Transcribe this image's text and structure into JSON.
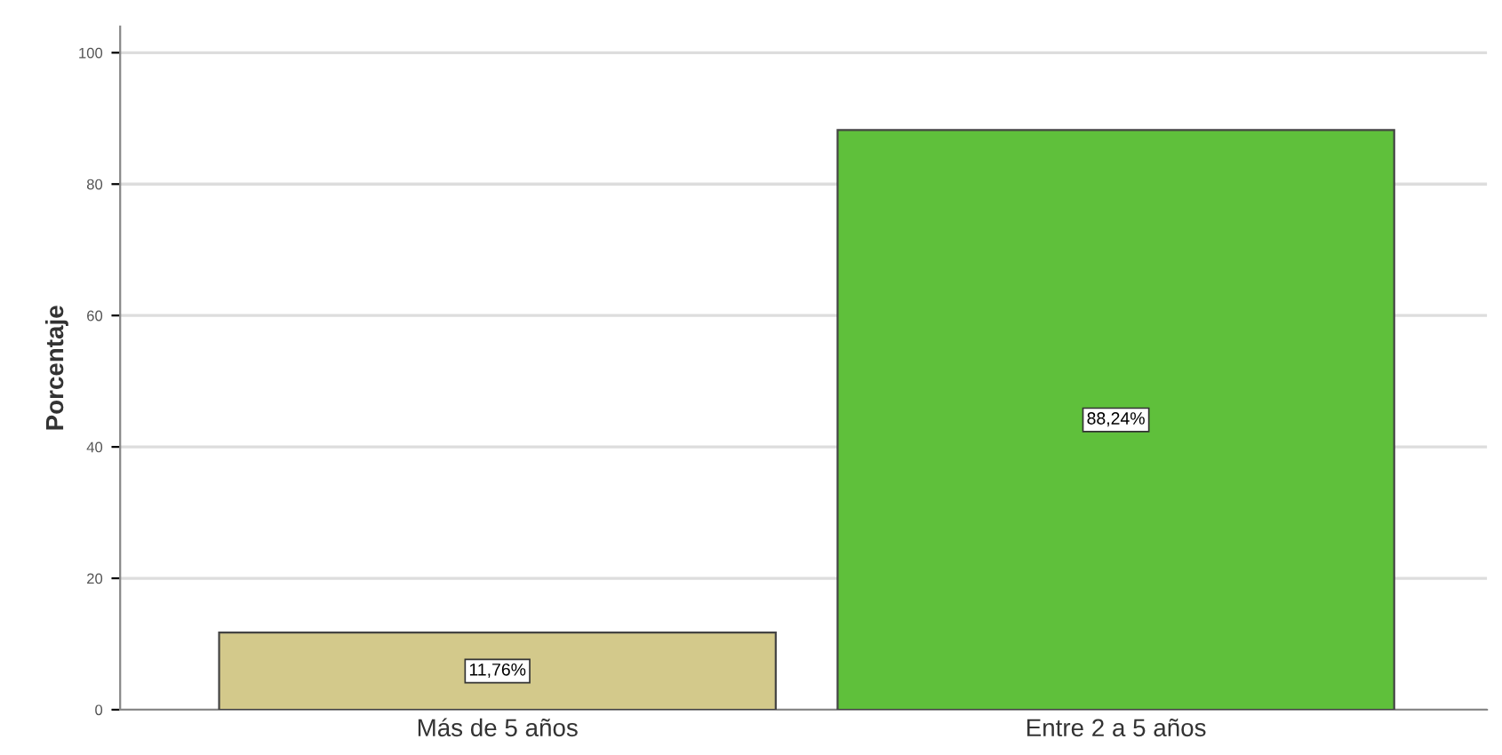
{
  "chart_data": {
    "type": "bar",
    "ylabel": "Porcentaje",
    "categories": [
      "Más de 5 años",
      "Entre 2 a 5 años"
    ],
    "values": [
      11.76,
      88.24
    ],
    "colors": [
      "#d3c98b",
      "#5fc03b"
    ],
    "value_labels": [
      "11,76%",
      "88,24%"
    ],
    "ylim": [
      0,
      104
    ],
    "yticks": [
      0,
      20,
      40,
      60,
      80,
      100
    ],
    "grid": "y"
  }
}
